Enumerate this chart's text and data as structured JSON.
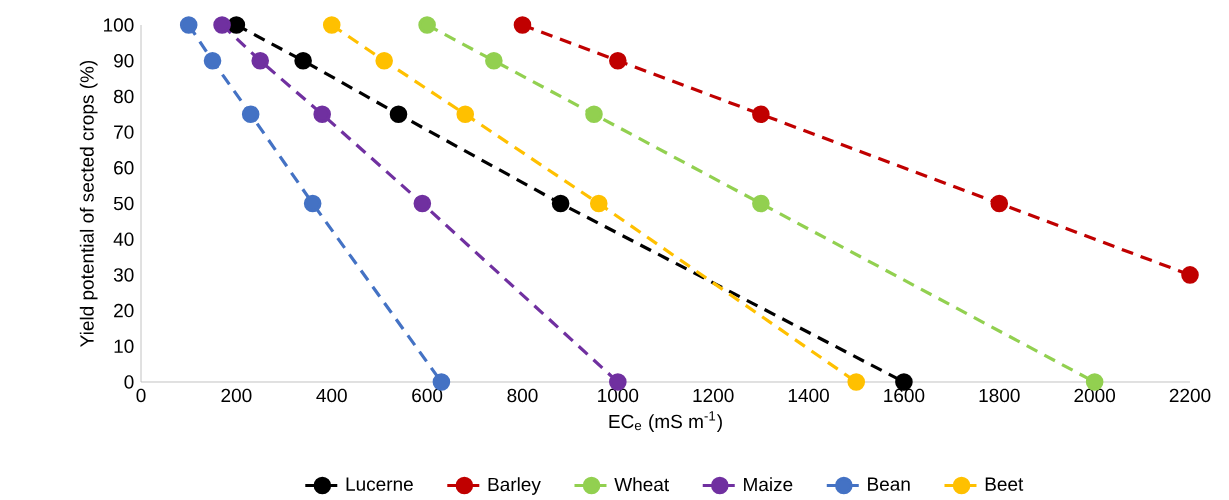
{
  "chart_data": {
    "type": "line",
    "xlabel": "EC$_{e}$ (mS m$^{-1}$)",
    "ylabel": "Yield potential of sected crops (%)",
    "xlim": [
      0,
      2200
    ],
    "ylim": [
      0,
      100
    ],
    "xticks": [
      0,
      200,
      400,
      600,
      800,
      1000,
      1200,
      1400,
      1600,
      1800,
      2000,
      2200
    ],
    "yticks": [
      0,
      10,
      20,
      30,
      40,
      50,
      60,
      70,
      80,
      90,
      100
    ],
    "legend": "bottom",
    "marker": "circle",
    "line_style": "dashed",
    "grid": false,
    "series": [
      {
        "name": "Lucerne",
        "color": "#000000",
        "x": [
          200,
          340,
          540,
          880,
          1600
        ],
        "values": [
          100,
          90,
          75,
          50,
          0
        ]
      },
      {
        "name": "Barley",
        "color": "#c00000",
        "x": [
          800,
          1000,
          1300,
          1800,
          2200
        ],
        "values": [
          100,
          90,
          75,
          50,
          30
        ]
      },
      {
        "name": "Wheat",
        "color": "#92d050",
        "x": [
          600,
          740,
          950,
          1300,
          2000
        ],
        "values": [
          100,
          90,
          75,
          50,
          0
        ]
      },
      {
        "name": "Maize",
        "color": "#7030a0",
        "x": [
          170,
          250,
          380,
          590,
          1000
        ],
        "values": [
          100,
          90,
          75,
          50,
          0
        ]
      },
      {
        "name": "Bean",
        "color": "#4472c4",
        "x": [
          100,
          150,
          230,
          360,
          630
        ],
        "values": [
          100,
          90,
          75,
          50,
          0
        ]
      },
      {
        "name": "Beet",
        "color": "#ffc000",
        "x": [
          400,
          510,
          680,
          960,
          1500
        ],
        "values": [
          100,
          90,
          75,
          50,
          0
        ]
      }
    ]
  }
}
